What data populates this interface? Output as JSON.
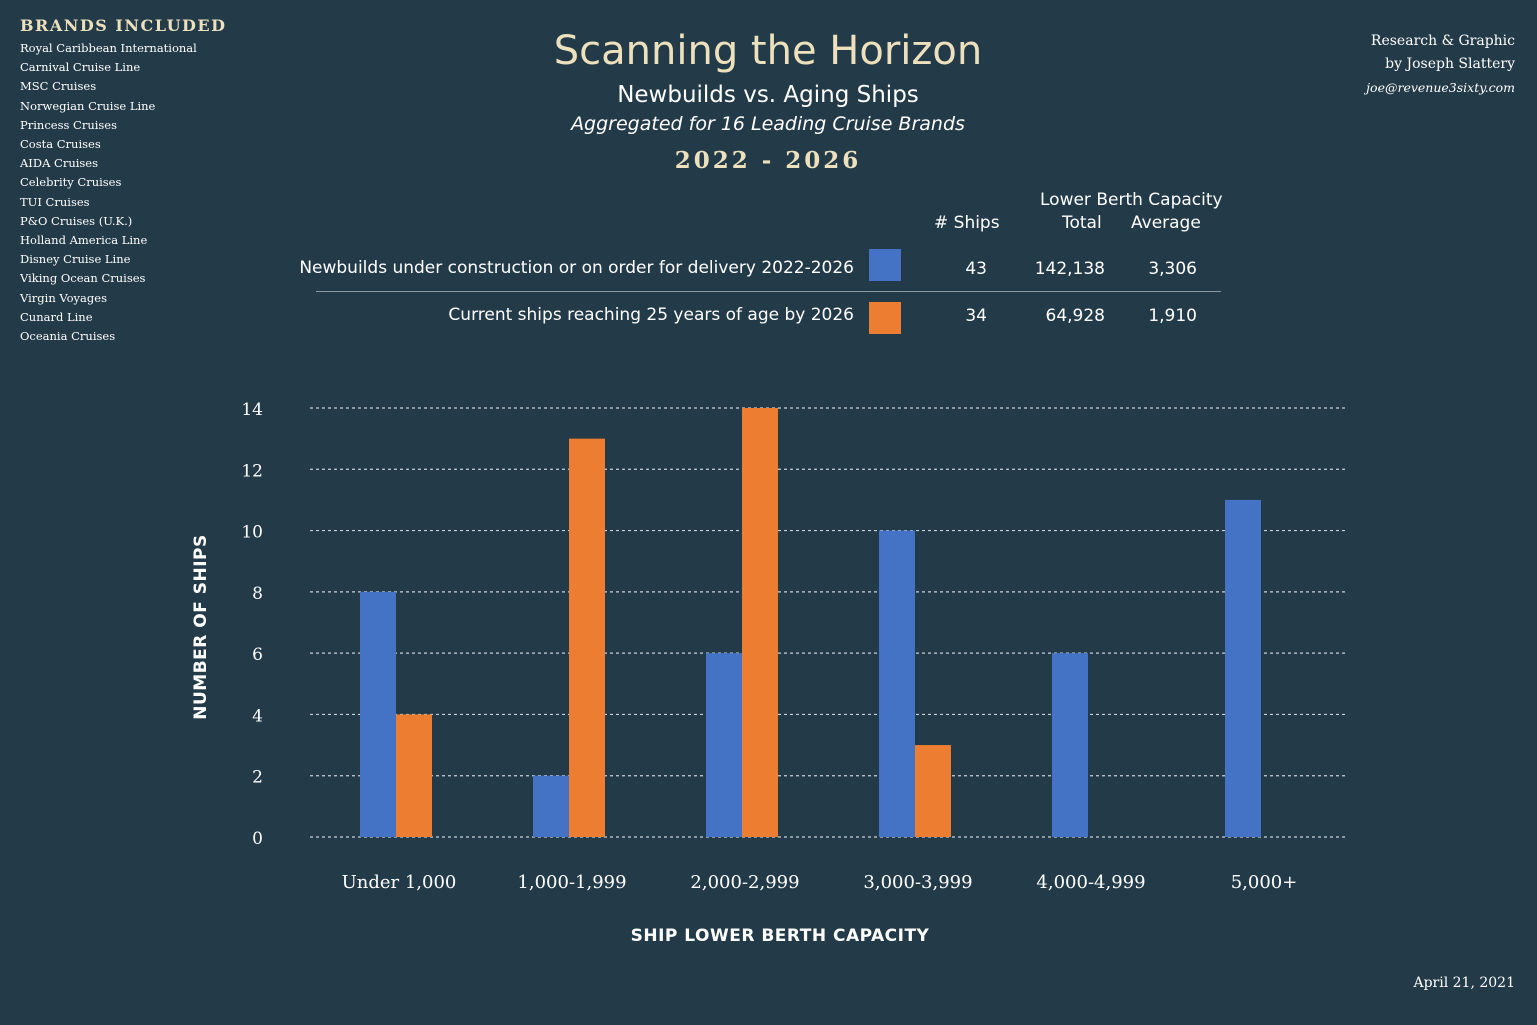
{
  "brands": {
    "heading": "BRANDS INCLUDED",
    "items": [
      "Royal Caribbean International",
      "Carnival Cruise Line",
      "MSC Cruises",
      "Norwegian Cruise Line",
      "Princess Cruises",
      "Costa Cruises",
      "AIDA Cruises",
      "Celebrity Cruises",
      "TUI Cruises",
      "P&O Cruises (U.K.)",
      "Holland America Line",
      "Disney Cruise Line",
      "Viking Ocean Cruises",
      "Virgin Voyages",
      "Cunard Line",
      "Oceania Cruises"
    ]
  },
  "credit": {
    "line1": "Research & Graphic",
    "line2": "by Joseph Slattery",
    "email": "joe@revenue3sixty.com"
  },
  "header": {
    "title": "Scanning the Horizon",
    "subtitle": "Newbuilds vs. Aging Ships",
    "subtitle2": "Aggregated for 16 Leading Cruise Brands",
    "years": "2022 - 2026"
  },
  "summary": {
    "group_header": "Lower Berth Capacity",
    "col_ships": "# Ships",
    "col_total": "Total",
    "col_average": "Average",
    "rows": [
      {
        "label": "Newbuilds under construction or on order for delivery 2022-2026",
        "color": "#4472c4",
        "ships": "43",
        "total": "142,138",
        "average": "3,306"
      },
      {
        "label": "Current ships reaching 25 years of age by 2026",
        "color": "#ed7d31",
        "ships": "34",
        "total": "64,928",
        "average": "1,910"
      }
    ]
  },
  "chart_data": {
    "type": "bar",
    "categories": [
      "Under 1,000",
      "1,000-1,999",
      "2,000-2,999",
      "3,000-3,999",
      "4,000-4,999",
      "5,000+"
    ],
    "series": [
      {
        "color": "#4472c4",
        "values": [
          8,
          2,
          6,
          10,
          6,
          11
        ]
      },
      {
        "color": "#ed7d31",
        "values": [
          4,
          13,
          14,
          3,
          0,
          0
        ]
      }
    ],
    "xlabel": "SHIP LOWER BERTH CAPACITY",
    "ylabel": "NUMBER OF SHIPS",
    "ylim": [
      0,
      14
    ],
    "yticks": [
      0,
      2,
      4,
      6,
      8,
      10,
      12,
      14
    ],
    "grid": "dotted horizontal"
  },
  "date": "April 21, 2021"
}
